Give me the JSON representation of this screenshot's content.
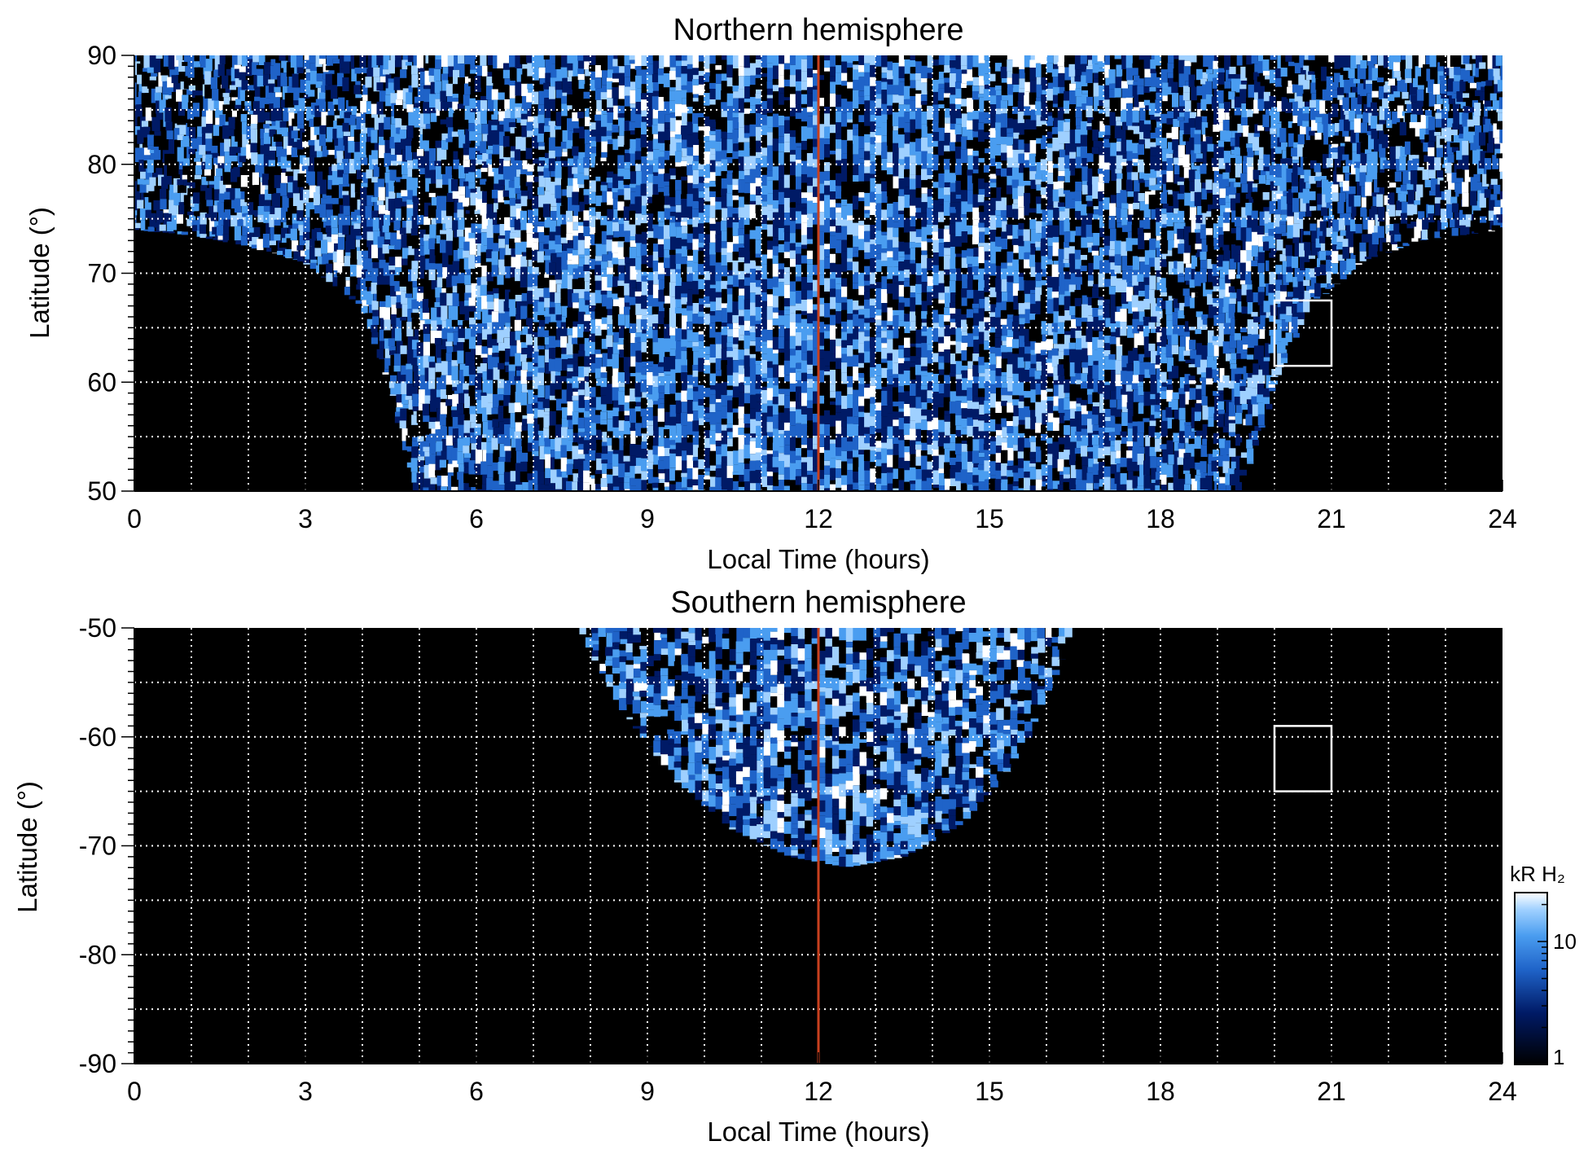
{
  "colors": {
    "background": "#ffffff",
    "plot_background": "#000000",
    "grid": "#ffffff",
    "noon_line": "#c8401e",
    "box": "#ffffff",
    "colormap": [
      "#000000",
      "#001a66",
      "#1f63c8",
      "#4a9df0",
      "#9fd0ff",
      "#ffffff"
    ]
  },
  "chart_data": [
    {
      "type": "heatmap",
      "title": "Northern hemisphere",
      "xlabel": "Local Time (hours)",
      "ylabel": "Latitude (°)",
      "xlim": [
        0,
        24
      ],
      "ylim": [
        50,
        90
      ],
      "xticks": [
        0,
        3,
        6,
        9,
        12,
        15,
        18,
        21,
        24
      ],
      "xtick_labels": [
        "0",
        "3",
        "6",
        "9",
        "12",
        "15",
        "18",
        "21",
        "24"
      ],
      "yticks": [
        50,
        60,
        70,
        80,
        90
      ],
      "ytick_labels": [
        "50",
        "60",
        "70",
        "80",
        "90"
      ],
      "grid": true,
      "vertical_line_x": 12,
      "coverage_lower_latitude": [
        [
          0,
          74
        ],
        [
          1,
          73.5
        ],
        [
          2,
          72.5
        ],
        [
          3,
          71
        ],
        [
          4,
          67
        ],
        [
          4.5,
          60
        ],
        [
          4.9,
          50
        ],
        [
          19.4,
          50
        ],
        [
          20,
          60
        ],
        [
          20.6,
          67
        ],
        [
          21.5,
          71
        ],
        [
          22.5,
          73
        ],
        [
          24,
          74
        ]
      ],
      "box": {
        "lt": [
          20,
          21
        ],
        "lat": [
          61.5,
          67.5
        ]
      }
    },
    {
      "type": "heatmap",
      "title": "Southern hemisphere",
      "xlabel": "Local Time (hours)",
      "ylabel": "Latitude (°)",
      "xlim": [
        0,
        24
      ],
      "ylim": [
        -90,
        -50
      ],
      "xticks": [
        0,
        3,
        6,
        9,
        12,
        15,
        18,
        21,
        24
      ],
      "xtick_labels": [
        "0",
        "3",
        "6",
        "9",
        "12",
        "15",
        "18",
        "21",
        "24"
      ],
      "yticks": [
        -50,
        -60,
        -70,
        -80,
        -90
      ],
      "ytick_labels": [
        "-50",
        "-60",
        "-70",
        "-80",
        "-90"
      ],
      "grid": true,
      "vertical_line_x": 12,
      "coverage_lower_latitude": [
        [
          7.8,
          -50
        ],
        [
          8.5,
          -57
        ],
        [
          9.5,
          -64
        ],
        [
          10.5,
          -68.5
        ],
        [
          11.5,
          -71
        ],
        [
          12,
          -71.5
        ],
        [
          12.5,
          -72
        ],
        [
          13.5,
          -71
        ],
        [
          14.5,
          -68
        ],
        [
          15.5,
          -62
        ],
        [
          16,
          -56
        ],
        [
          16.5,
          -50
        ]
      ],
      "box": {
        "lt": [
          20,
          21
        ],
        "lat": [
          -65,
          -59
        ]
      }
    }
  ],
  "colorbar": {
    "label": "kR H₂",
    "ticks": [
      1,
      10
    ],
    "tick_labels": [
      "1",
      "10"
    ],
    "scale": "log",
    "range": [
      1,
      25
    ]
  }
}
